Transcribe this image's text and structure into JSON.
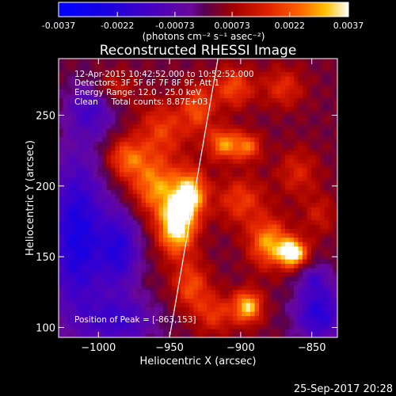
{
  "chart_data": {
    "type": "heatmap",
    "title": "Reconstructed RHESSI Image",
    "xlabel": "Heliocentric X (arcsec)",
    "ylabel": "Heliocentric Y (arcsec)",
    "xlim": [
      -1028,
      -832
    ],
    "ylim": [
      93,
      290
    ],
    "xticks": [
      -1000,
      -950,
      -900,
      -850
    ],
    "yticks": [
      100,
      150,
      200,
      250
    ],
    "colorbar": {
      "range": [
        -0.0037,
        0.0037
      ],
      "ticks": [
        "-0.0037",
        "-0.0022",
        "-0.00073",
        "0.00073",
        "0.0022",
        "0.0037"
      ],
      "units": "(photons cm⁻² s⁻¹ asec⁻²)"
    },
    "annotations": [
      "12-Apr-2015 10:42:52.000 to 10:52:52.000",
      "Detectors: 3F 5F 6F 7F 8F 9F, Att 1",
      "Energy Range: 12.0 - 25.0 keV",
      "Clean     Total counts: 8.87E+03"
    ],
    "peak_label": "Position of Peak = [-863,153]",
    "peak": {
      "x": -863,
      "y": 153
    },
    "limb_line": [
      [
        -950,
        93
      ],
      [
        -916,
        290
      ]
    ],
    "sources": [
      {
        "x": -945,
        "y": 172,
        "amp": 0.0037,
        "sx": 9,
        "sy": 14
      },
      {
        "x": -935,
        "y": 195,
        "amp": 0.003,
        "sx": 8,
        "sy": 12
      },
      {
        "x": -960,
        "y": 200,
        "amp": 0.0024,
        "sx": 12,
        "sy": 14
      },
      {
        "x": -980,
        "y": 220,
        "amp": 0.002,
        "sx": 10,
        "sy": 10
      },
      {
        "x": -955,
        "y": 240,
        "amp": 0.0016,
        "sx": 12,
        "sy": 14
      },
      {
        "x": -930,
        "y": 255,
        "amp": 0.0018,
        "sx": 8,
        "sy": 12
      },
      {
        "x": -912,
        "y": 230,
        "amp": 0.0024,
        "sx": 8,
        "sy": 8
      },
      {
        "x": -895,
        "y": 228,
        "amp": 0.002,
        "sx": 7,
        "sy": 7
      },
      {
        "x": -905,
        "y": 270,
        "amp": 0.0018,
        "sx": 10,
        "sy": 10
      },
      {
        "x": -870,
        "y": 270,
        "amp": 0.0014,
        "sx": 10,
        "sy": 10
      },
      {
        "x": -863,
        "y": 153,
        "amp": 0.0036,
        "sx": 7,
        "sy": 7
      },
      {
        "x": -880,
        "y": 160,
        "amp": 0.0026,
        "sx": 10,
        "sy": 12
      },
      {
        "x": -895,
        "y": 115,
        "amp": 0.003,
        "sx": 7,
        "sy": 8
      },
      {
        "x": -900,
        "y": 190,
        "amp": 0.0016,
        "sx": 12,
        "sy": 12
      },
      {
        "x": -935,
        "y": 130,
        "amp": 0.0018,
        "sx": 9,
        "sy": 12
      },
      {
        "x": -918,
        "y": 110,
        "amp": 0.0015,
        "sx": 10,
        "sy": 10
      },
      {
        "x": -860,
        "y": 210,
        "amp": 0.0012,
        "sx": 10,
        "sy": 12
      },
      {
        "x": -845,
        "y": 180,
        "amp": 0.001,
        "sx": 8,
        "sy": 10
      },
      {
        "x": -990,
        "y": 270,
        "amp": 0.0012,
        "sx": 10,
        "sy": 8
      },
      {
        "x": -1015,
        "y": 165,
        "amp": -0.0028,
        "sx": 14,
        "sy": 40
      },
      {
        "x": -985,
        "y": 155,
        "amp": -0.0022,
        "sx": 10,
        "sy": 20
      },
      {
        "x": -1005,
        "y": 255,
        "amp": -0.0016,
        "sx": 12,
        "sy": 14
      },
      {
        "x": -985,
        "y": 105,
        "amp": -0.0018,
        "sx": 18,
        "sy": 12
      },
      {
        "x": -845,
        "y": 110,
        "amp": -0.0024,
        "sx": 12,
        "sy": 14
      },
      {
        "x": -848,
        "y": 135,
        "amp": -0.0012,
        "sx": 8,
        "sy": 8
      }
    ]
  },
  "footer": {
    "timestamp": "25-Sep-2017 20:28"
  }
}
